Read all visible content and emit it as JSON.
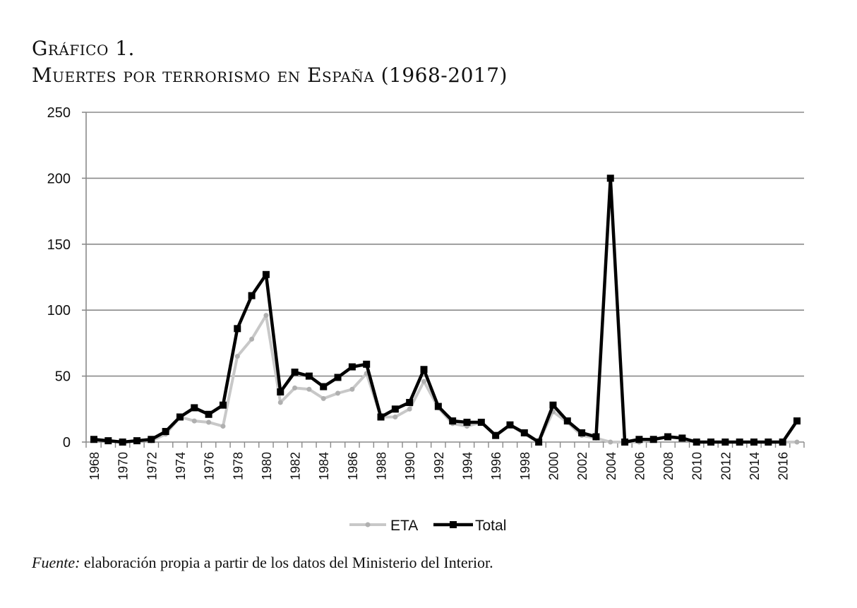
{
  "figure": {
    "label": "Gráfico 1.",
    "title": "Muertes por terrorismo en España (1968-2017)"
  },
  "source": {
    "label": "Fuente:",
    "text": "elaboración propia a partir de los datos del Ministerio del Interior."
  },
  "chart_data": {
    "type": "line",
    "x": [
      1968,
      1969,
      1970,
      1971,
      1972,
      1973,
      1974,
      1975,
      1976,
      1977,
      1978,
      1979,
      1980,
      1981,
      1982,
      1983,
      1984,
      1985,
      1986,
      1987,
      1988,
      1989,
      1990,
      1991,
      1992,
      1993,
      1994,
      1995,
      1996,
      1997,
      1998,
      1999,
      2000,
      2001,
      2002,
      2003,
      2004,
      2005,
      2006,
      2007,
      2008,
      2009,
      2010,
      2011,
      2012,
      2013,
      2014,
      2015,
      2016,
      2017
    ],
    "x_tick_labels": [
      "1968",
      "1970",
      "1972",
      "1974",
      "1976",
      "1978",
      "1980",
      "1982",
      "1984",
      "1986",
      "1988",
      "1990",
      "1992",
      "1994",
      "1996",
      "1998",
      "2000",
      "2002",
      "2004",
      "2006",
      "2008",
      "2010",
      "2012",
      "2014",
      "2016"
    ],
    "y_ticks": [
      0,
      50,
      100,
      150,
      200,
      250
    ],
    "ylim": [
      0,
      250
    ],
    "grid": true,
    "legend_position": "bottom",
    "series": [
      {
        "name": "ETA",
        "color": "#c8c8c8",
        "marker": "circle",
        "values": [
          2,
          1,
          0,
          1,
          1,
          6,
          19,
          16,
          15,
          12,
          65,
          78,
          96,
          30,
          41,
          40,
          33,
          37,
          40,
          52,
          19,
          19,
          25,
          46,
          26,
          14,
          12,
          15,
          5,
          13,
          6,
          0,
          23,
          15,
          5,
          3,
          0,
          0,
          0,
          2,
          4,
          3,
          0,
          0,
          0,
          0,
          0,
          0,
          0,
          0
        ]
      },
      {
        "name": "Total",
        "color": "#000000",
        "marker": "square",
        "values": [
          2,
          1,
          0,
          1,
          2,
          8,
          19,
          26,
          21,
          28,
          86,
          111,
          127,
          38,
          53,
          50,
          42,
          49,
          57,
          59,
          19,
          25,
          30,
          55,
          27,
          16,
          15,
          15,
          5,
          13,
          7,
          0,
          28,
          16,
          7,
          4,
          200,
          0,
          2,
          2,
          4,
          3,
          0,
          0,
          0,
          0,
          0,
          0,
          0,
          16
        ]
      }
    ]
  }
}
